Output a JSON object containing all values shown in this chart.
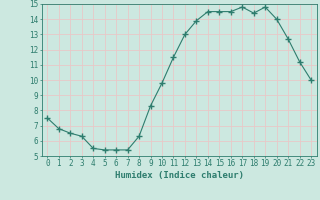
{
  "x": [
    0,
    1,
    2,
    3,
    4,
    5,
    6,
    7,
    8,
    9,
    10,
    11,
    12,
    13,
    14,
    15,
    16,
    17,
    18,
    19,
    20,
    21,
    22,
    23
  ],
  "y": [
    7.5,
    6.8,
    6.5,
    6.3,
    5.5,
    5.4,
    5.4,
    5.4,
    6.3,
    8.3,
    9.8,
    11.5,
    13.0,
    13.9,
    14.5,
    14.5,
    14.5,
    14.8,
    14.4,
    14.8,
    14.0,
    12.7,
    11.2,
    10.0
  ],
  "line_color": "#2e7d6e",
  "marker": "+",
  "marker_size": 4,
  "xlabel": "Humidex (Indice chaleur)",
  "bg_color": "#cce8e0",
  "grid_color": "#e8c8c8",
  "xlim": [
    -0.5,
    23.5
  ],
  "ylim": [
    5,
    15
  ],
  "yticks": [
    5,
    6,
    7,
    8,
    9,
    10,
    11,
    12,
    13,
    14,
    15
  ],
  "xticks": [
    0,
    1,
    2,
    3,
    4,
    5,
    6,
    7,
    8,
    9,
    10,
    11,
    12,
    13,
    14,
    15,
    16,
    17,
    18,
    19,
    20,
    21,
    22,
    23
  ],
  "xtick_labels": [
    "0",
    "1",
    "2",
    "3",
    "4",
    "5",
    "6",
    "7",
    "8",
    "9",
    "10",
    "11",
    "12",
    "13",
    "14",
    "15",
    "16",
    "17",
    "18",
    "19",
    "20",
    "21",
    "22",
    "23"
  ],
  "tick_color": "#2e7d6e",
  "label_fontsize": 6.5,
  "tick_fontsize": 5.5
}
